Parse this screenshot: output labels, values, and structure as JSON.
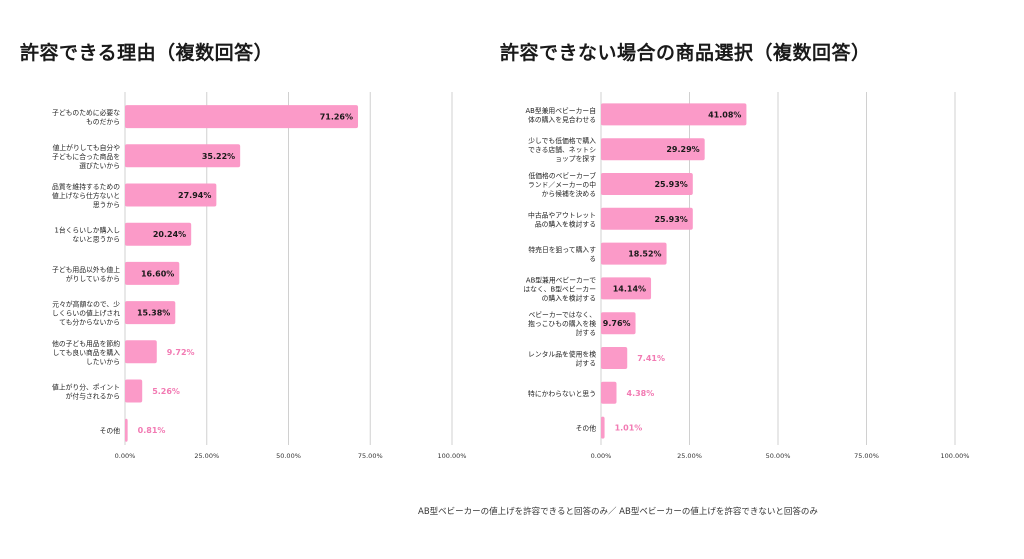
{
  "footnote": "AB型ベビーカーの値上げを許容できると回答のみ／ AB型ベビーカーの値上げを許容できないと回答のみ",
  "colors": {
    "bar": "#fb9ac8",
    "label_inside": "#1a1a1a",
    "label_outside": "#f27ab3",
    "grid": "#d0d0d0"
  },
  "chart_data": [
    {
      "type": "bar",
      "orientation": "horizontal",
      "title": "許容できる理由（複数回答）",
      "categories": [
        [
          "子どものために必要な",
          "ものだから"
        ],
        [
          "値上がりしても自分や",
          "子どもに合った商品を",
          "選びたいから"
        ],
        [
          "品質を維持するための",
          "値上げなら仕方ないと",
          "思うから"
        ],
        [
          "1台くらいしか購入し",
          "ないと思うから"
        ],
        [
          "子ども用品以外も値上",
          "がりしているから"
        ],
        [
          "元々が高額なので、少",
          "しくらいの値上げされ",
          "ても分からないから"
        ],
        [
          "他の子ども用品を節約",
          "しても良い商品を購入",
          "したいから"
        ],
        [
          "値上がり分、ポイント",
          "が付与されるから"
        ],
        [
          "その他"
        ]
      ],
      "values": [
        71.26,
        35.22,
        27.94,
        20.24,
        16.6,
        15.38,
        9.72,
        5.26,
        0.81
      ],
      "value_labels": [
        "71.26%",
        "35.22%",
        "27.94%",
        "20.24%",
        "16.60%",
        "15.38%",
        "9.72%",
        "5.26%",
        "0.81%"
      ],
      "xlim": [
        0,
        100
      ],
      "xticks": [
        0,
        25,
        50,
        75,
        100
      ],
      "xtick_labels": [
        "0.00%",
        "25.00%",
        "50.00%",
        "75.00%",
        "100.00%"
      ],
      "grid": true
    },
    {
      "type": "bar",
      "orientation": "horizontal",
      "title": "許容できない場合の商品選択（複数回答）",
      "categories": [
        [
          "AB型兼用ベビーカー自",
          "体の購入を見合わせる"
        ],
        [
          "少しでも低価格で購入",
          "できる店舗、ネットシ",
          "ョップを探す"
        ],
        [
          "低価格のベビーカーブ",
          "ランド／メーカーの中",
          "から候補を決める"
        ],
        [
          "中古品やアウトレット",
          "品の購入を検討する"
        ],
        [
          "特売日を狙って購入す",
          "る"
        ],
        [
          "AB型兼用ベビーカーで",
          "はなく、B型ベビーカー",
          "の購入を検討する"
        ],
        [
          "ベビーカーではなく、",
          "抱っこひもの購入を検",
          "討する"
        ],
        [
          "レンタル品を使用を検",
          "討する"
        ],
        [
          "特にかわらないと思う"
        ],
        [
          "その他"
        ]
      ],
      "values": [
        41.08,
        29.29,
        25.93,
        25.93,
        18.52,
        14.14,
        9.76,
        7.41,
        4.38,
        1.01
      ],
      "value_labels": [
        "41.08%",
        "29.29%",
        "25.93%",
        "25.93%",
        "18.52%",
        "14.14%",
        "9.76%",
        "7.41%",
        "4.38%",
        "1.01%"
      ],
      "xlim": [
        0,
        100
      ],
      "xticks": [
        0,
        25,
        50,
        75,
        100
      ],
      "xtick_labels": [
        "0.00%",
        "25.00%",
        "50.00%",
        "75.00%",
        "100.00%"
      ],
      "grid": true
    }
  ]
}
